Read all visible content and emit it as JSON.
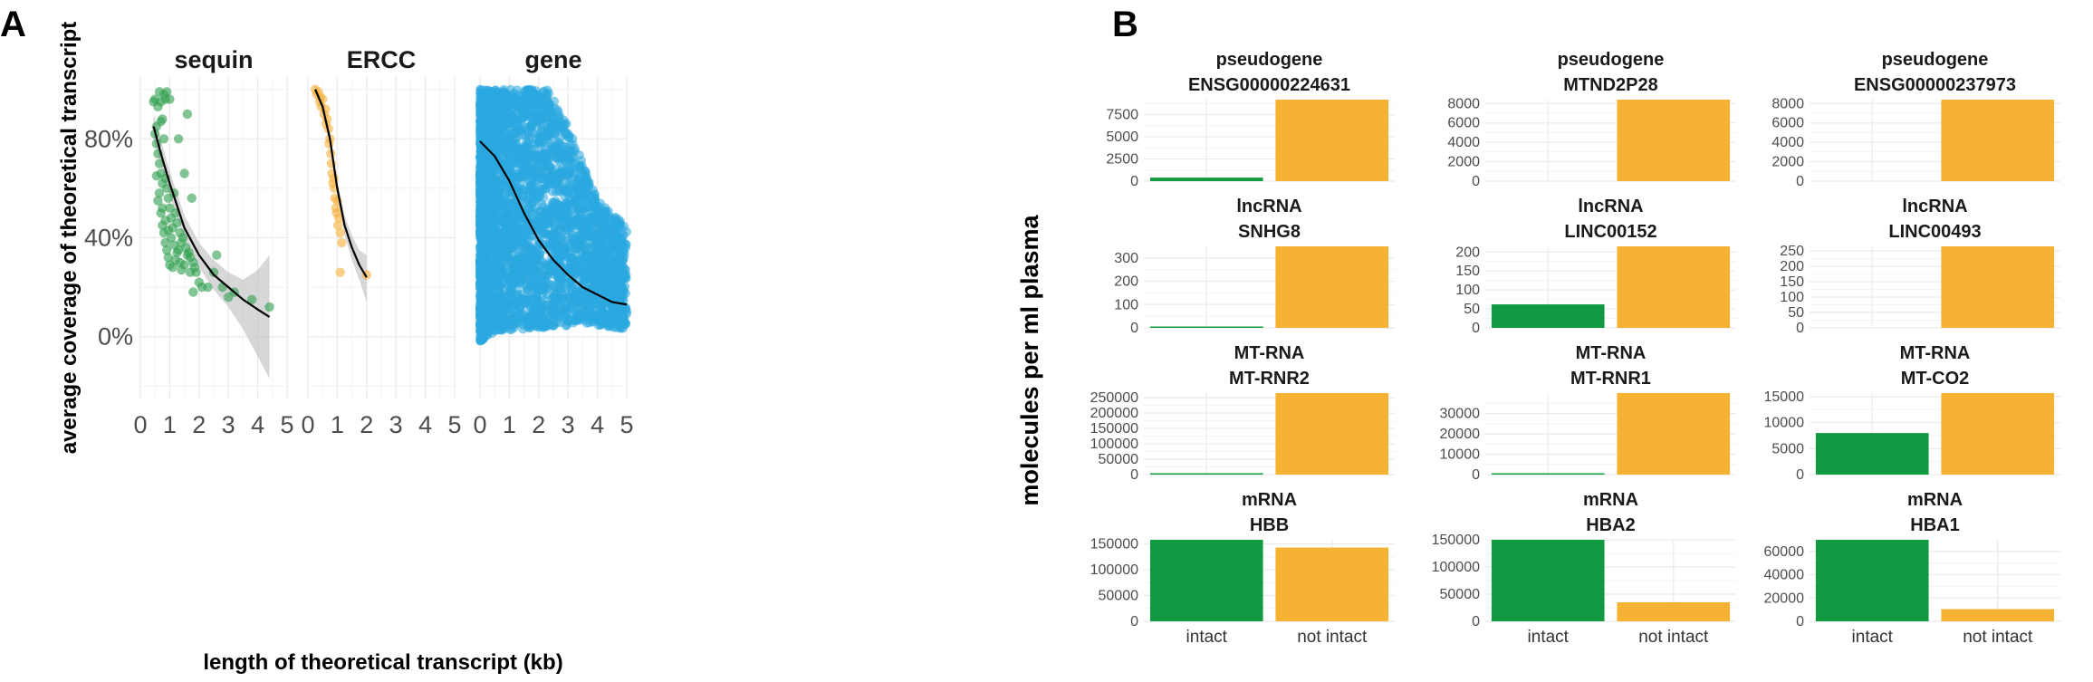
{
  "panel_labels": {
    "a": "A",
    "b": "B"
  },
  "chart_data": [
    {
      "id": "A",
      "type": "scatter",
      "facets": [
        "sequin",
        "ERCC",
        "gene"
      ],
      "xlabel": "length of theoretical transcript (kb)",
      "ylabel": "average coverage of theoretical transcript",
      "xlim": [
        0,
        5
      ],
      "ylim": [
        -0.25,
        1.05
      ],
      "xticks": [
        "0",
        "1",
        "2",
        "3",
        "4",
        "5"
      ],
      "yticks": [
        {
          "value": 0,
          "label": "0%"
        },
        {
          "value": 0.4,
          "label": "40%"
        },
        {
          "value": 0.8,
          "label": "80%"
        }
      ],
      "colors": {
        "sequin": "#2e9e4f",
        "ERCC": "#f6b13a",
        "gene": "#29a8e0",
        "fit": "#000000",
        "ribbon": "#bdbdbd"
      },
      "series": [
        {
          "name": "sequin",
          "points": [
            [
              0.45,
              0.95
            ],
            [
              0.5,
              0.96
            ],
            [
              0.55,
              0.85
            ],
            [
              0.6,
              0.93
            ],
            [
              0.65,
              0.99
            ],
            [
              0.7,
              0.87
            ],
            [
              0.7,
              0.95
            ],
            [
              0.75,
              0.88
            ],
            [
              0.8,
              0.98
            ],
            [
              0.85,
              0.96
            ],
            [
              0.9,
              0.99
            ],
            [
              1.0,
              0.96
            ],
            [
              0.5,
              0.82
            ],
            [
              0.55,
              0.78
            ],
            [
              0.6,
              0.74
            ],
            [
              0.65,
              0.7
            ],
            [
              0.7,
              0.66
            ],
            [
              0.75,
              0.62
            ],
            [
              0.8,
              0.8
            ],
            [
              0.85,
              0.64
            ],
            [
              0.9,
              0.6
            ],
            [
              0.95,
              0.56
            ],
            [
              1.0,
              0.52
            ],
            [
              1.05,
              0.48
            ],
            [
              1.1,
              0.44
            ],
            [
              1.15,
              0.58
            ],
            [
              1.2,
              0.5
            ],
            [
              1.25,
              0.46
            ],
            [
              1.3,
              0.8
            ],
            [
              1.35,
              0.42
            ],
            [
              1.4,
              0.38
            ],
            [
              1.45,
              0.4
            ],
            [
              1.5,
              0.66
            ],
            [
              1.55,
              0.36
            ],
            [
              1.6,
              0.9
            ],
            [
              1.65,
              0.34
            ],
            [
              1.7,
              0.32
            ],
            [
              1.75,
              0.56
            ],
            [
              1.8,
              0.3
            ],
            [
              1.85,
              0.28
            ],
            [
              1.9,
              0.26
            ],
            [
              2.0,
              0.22
            ],
            [
              0.6,
              0.55
            ],
            [
              0.7,
              0.5
            ],
            [
              0.75,
              0.45
            ],
            [
              0.8,
              0.42
            ],
            [
              0.85,
              0.38
            ],
            [
              0.9,
              0.35
            ],
            [
              0.95,
              0.32
            ],
            [
              1.0,
              0.29
            ],
            [
              1.1,
              0.28
            ],
            [
              1.2,
              0.31
            ],
            [
              1.3,
              0.35
            ],
            [
              1.4,
              0.27
            ],
            [
              1.5,
              0.29
            ],
            [
              1.6,
              0.33
            ],
            [
              1.7,
              0.26
            ],
            [
              1.8,
              0.18
            ],
            [
              2.1,
              0.2
            ],
            [
              2.3,
              0.2
            ],
            [
              2.5,
              0.26
            ],
            [
              2.6,
              0.33
            ],
            [
              2.8,
              0.2
            ],
            [
              3.0,
              0.16
            ],
            [
              3.2,
              0.18
            ],
            [
              3.8,
              0.15
            ],
            [
              4.4,
              0.12
            ],
            [
              0.55,
              0.65
            ],
            [
              0.65,
              0.58
            ],
            [
              0.75,
              0.52
            ],
            [
              0.85,
              0.47
            ],
            [
              0.95,
              0.43
            ],
            [
              1.05,
              0.4
            ],
            [
              1.15,
              0.37
            ],
            [
              1.25,
              0.34
            ],
            [
              1.35,
              0.3
            ]
          ],
          "fit": [
            [
              0.45,
              0.85
            ],
            [
              0.7,
              0.74
            ],
            [
              1.0,
              0.62
            ],
            [
              1.5,
              0.44
            ],
            [
              2.0,
              0.33
            ],
            [
              2.5,
              0.25
            ],
            [
              3.0,
              0.2
            ],
            [
              3.5,
              0.15
            ],
            [
              4.0,
              0.11
            ],
            [
              4.4,
              0.08
            ]
          ],
          "ribbon_upper": [
            [
              0.45,
              0.9
            ],
            [
              1.0,
              0.67
            ],
            [
              1.5,
              0.49
            ],
            [
              2.0,
              0.38
            ],
            [
              2.5,
              0.31
            ],
            [
              3.0,
              0.26
            ],
            [
              3.5,
              0.23
            ],
            [
              4.0,
              0.27
            ],
            [
              4.4,
              0.33
            ]
          ],
          "ribbon_lower": [
            [
              0.45,
              0.8
            ],
            [
              1.0,
              0.57
            ],
            [
              1.5,
              0.39
            ],
            [
              2.0,
              0.28
            ],
            [
              2.5,
              0.19
            ],
            [
              3.0,
              0.12
            ],
            [
              3.5,
              0.03
            ],
            [
              4.0,
              -0.08
            ],
            [
              4.4,
              -0.17
            ]
          ]
        },
        {
          "name": "ERCC",
          "points": [
            [
              0.25,
              1.0
            ],
            [
              0.3,
              0.98
            ],
            [
              0.35,
              0.99
            ],
            [
              0.4,
              0.95
            ],
            [
              0.42,
              0.97
            ],
            [
              0.45,
              0.93
            ],
            [
              0.5,
              0.96
            ],
            [
              0.55,
              0.9
            ],
            [
              0.6,
              0.92
            ],
            [
              0.62,
              0.86
            ],
            [
              0.65,
              0.88
            ],
            [
              0.7,
              0.84
            ],
            [
              0.72,
              0.78
            ],
            [
              0.75,
              0.8
            ],
            [
              0.78,
              0.74
            ],
            [
              0.8,
              0.7
            ],
            [
              0.82,
              0.66
            ],
            [
              0.85,
              0.62
            ],
            [
              0.88,
              0.64
            ],
            [
              0.9,
              0.6
            ],
            [
              0.92,
              0.56
            ],
            [
              0.95,
              0.52
            ],
            [
              0.98,
              0.5
            ],
            [
              1.0,
              0.55
            ],
            [
              1.02,
              0.45
            ],
            [
              1.05,
              0.48
            ],
            [
              1.1,
              0.42
            ],
            [
              1.15,
              0.38
            ],
            [
              1.1,
              0.26
            ],
            [
              2.0,
              0.25
            ]
          ],
          "fit": [
            [
              0.25,
              1.0
            ],
            [
              0.5,
              0.93
            ],
            [
              0.75,
              0.8
            ],
            [
              1.0,
              0.6
            ],
            [
              1.25,
              0.45
            ],
            [
              1.5,
              0.36
            ],
            [
              1.75,
              0.29
            ],
            [
              2.0,
              0.24
            ]
          ],
          "ribbon_upper": [
            [
              0.25,
              1.02
            ],
            [
              0.5,
              0.96
            ],
            [
              0.75,
              0.83
            ],
            [
              1.0,
              0.63
            ],
            [
              1.25,
              0.49
            ],
            [
              1.5,
              0.41
            ],
            [
              1.75,
              0.35
            ],
            [
              2.0,
              0.33
            ]
          ],
          "ribbon_lower": [
            [
              0.25,
              0.98
            ],
            [
              0.5,
              0.9
            ],
            [
              0.75,
              0.77
            ],
            [
              1.0,
              0.57
            ],
            [
              1.25,
              0.41
            ],
            [
              1.5,
              0.31
            ],
            [
              1.75,
              0.23
            ],
            [
              2.0,
              0.14
            ]
          ]
        },
        {
          "name": "gene",
          "cloud": {
            "x_range": [
              0.0,
              5.0
            ],
            "upper_bound": [
              [
                0.0,
                1.0
              ],
              [
                2.3,
                1.0
              ],
              [
                3.0,
                0.85
              ],
              [
                4.0,
                0.55
              ],
              [
                5.0,
                0.45
              ]
            ],
            "lower_bound": [
              [
                0.0,
                -0.02
              ],
              [
                0.5,
                0.02
              ],
              [
                1.5,
                0.03
              ],
              [
                2.5,
                0.04
              ],
              [
                3.5,
                0.05
              ],
              [
                5.0,
                0.03
              ]
            ]
          },
          "fit": [
            [
              0.0,
              0.79
            ],
            [
              0.5,
              0.73
            ],
            [
              1.0,
              0.63
            ],
            [
              1.5,
              0.5
            ],
            [
              2.0,
              0.39
            ],
            [
              2.5,
              0.31
            ],
            [
              3.0,
              0.25
            ],
            [
              3.5,
              0.2
            ],
            [
              4.0,
              0.17
            ],
            [
              4.5,
              0.14
            ],
            [
              5.0,
              0.13
            ]
          ]
        }
      ]
    },
    {
      "id": "B",
      "type": "bar",
      "ylabel": "molecules per ml plasma",
      "categories": [
        "intact",
        "not intact"
      ],
      "colors": {
        "intact": "#129a42",
        "not intact": "#f6b233"
      },
      "facets": [
        {
          "title1": "pseudogene",
          "title2": "ENSG00000224631",
          "values": [
            400,
            9200
          ],
          "ymax": 9200,
          "ticks": [
            0,
            2500,
            5000,
            7500
          ]
        },
        {
          "title1": "pseudogene",
          "title2": "MTND2P28",
          "values": [
            0,
            8400
          ],
          "ymax": 8400,
          "ticks": [
            0,
            2000,
            4000,
            6000,
            8000
          ]
        },
        {
          "title1": "pseudogene",
          "title2": "ENSG00000237973",
          "values": [
            0,
            8400
          ],
          "ymax": 8400,
          "ticks": [
            0,
            2000,
            4000,
            6000,
            8000
          ]
        },
        {
          "title1": "lncRNA",
          "title2": "SNHG8",
          "values": [
            2,
            350
          ],
          "ymax": 350,
          "ticks": [
            0,
            100,
            200,
            300
          ]
        },
        {
          "title1": "lncRNA",
          "title2": "LINC00152",
          "values": [
            62,
            215
          ],
          "ymax": 215,
          "ticks": [
            0,
            50,
            100,
            150,
            200
          ]
        },
        {
          "title1": "lncRNA",
          "title2": "LINC00493",
          "values": [
            0,
            265
          ],
          "ymax": 265,
          "ticks": [
            0,
            50,
            100,
            150,
            200,
            250
          ]
        },
        {
          "title1": "MT-RNA",
          "title2": "MT-RNR2",
          "values": [
            500,
            265000
          ],
          "ymax": 265000,
          "ticks": [
            0,
            50000,
            100000,
            150000,
            200000,
            250000
          ]
        },
        {
          "title1": "MT-RNA",
          "title2": "MT-RNR1",
          "values": [
            200,
            40000
          ],
          "ymax": 40000,
          "ticks": [
            0,
            10000,
            20000,
            30000
          ]
        },
        {
          "title1": "MT-RNA",
          "title2": "MT-CO2",
          "values": [
            8000,
            15700
          ],
          "ymax": 15700,
          "ticks": [
            0,
            5000,
            10000,
            15000
          ]
        },
        {
          "title1": "mRNA",
          "title2": "HBB",
          "values": [
            158000,
            143000
          ],
          "ymax": 158000,
          "ticks": [
            0,
            50000,
            100000,
            150000
          ]
        },
        {
          "title1": "mRNA",
          "title2": "HBA2",
          "values": [
            150000,
            35000
          ],
          "ymax": 150000,
          "ticks": [
            0,
            50000,
            100000,
            150000
          ]
        },
        {
          "title1": "mRNA",
          "title2": "HBA1",
          "values": [
            70000,
            10500
          ],
          "ymax": 70000,
          "ticks": [
            0,
            20000,
            40000,
            60000
          ]
        }
      ]
    }
  ]
}
